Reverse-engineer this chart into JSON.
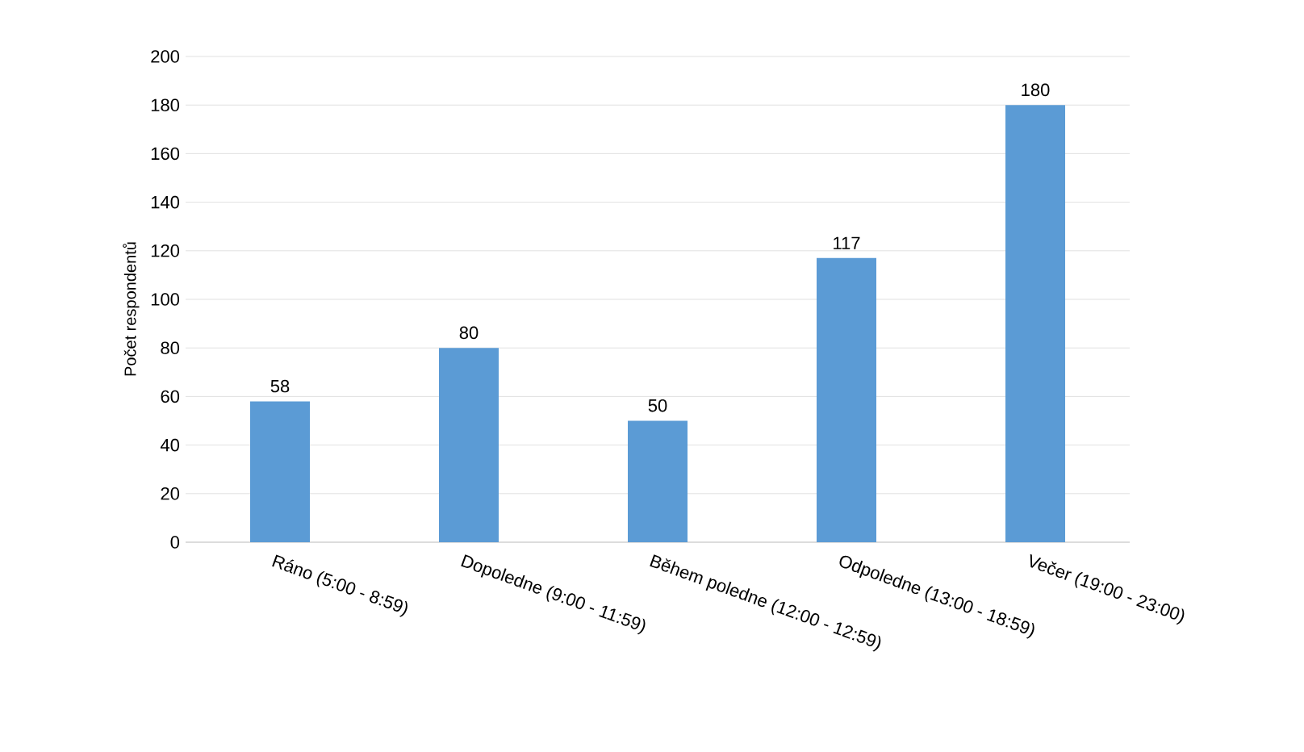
{
  "chart_data": {
    "type": "bar",
    "ylabel": "Počet respondentů",
    "categories": [
      "Ráno (5:00 - 8:59)",
      "Dopoledne (9:00 - 11:59)",
      "Během poledne (12:00 - 12:59)",
      "Odpoledne (13:00 - 18:59)",
      "Večer (19:00 - 23:00)"
    ],
    "values": [
      58,
      80,
      50,
      117,
      180
    ],
    "color": "#5b9bd5",
    "ylim": [
      0,
      200
    ],
    "yticks": [
      0,
      20,
      40,
      60,
      80,
      100,
      120,
      140,
      160,
      180,
      200
    ],
    "grid": "y",
    "data_labels": true
  }
}
